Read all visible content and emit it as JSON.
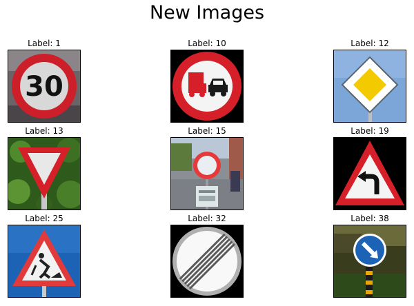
{
  "title": "New Images",
  "images": [
    {
      "label": "Label: 1",
      "sign": "speed-limit-30",
      "sign_text": "30"
    },
    {
      "label": "Label: 10",
      "sign": "no-passing-trucks"
    },
    {
      "label": "Label: 12",
      "sign": "priority-road"
    },
    {
      "label": "Label: 13",
      "sign": "yield"
    },
    {
      "label": "Label: 15",
      "sign": "no-vehicles"
    },
    {
      "label": "Label: 19",
      "sign": "dangerous-curve-left"
    },
    {
      "label": "Label: 25",
      "sign": "road-work"
    },
    {
      "label": "Label: 32",
      "sign": "end-of-all-limits"
    },
    {
      "label": "Label: 38",
      "sign": "keep-right"
    }
  ],
  "colors": {
    "red": "#d5202a",
    "yellow": "#f3c900",
    "blue": "#1d63b5",
    "sky": "#7da6d8",
    "black": "#000000",
    "white": "#ffffff"
  }
}
